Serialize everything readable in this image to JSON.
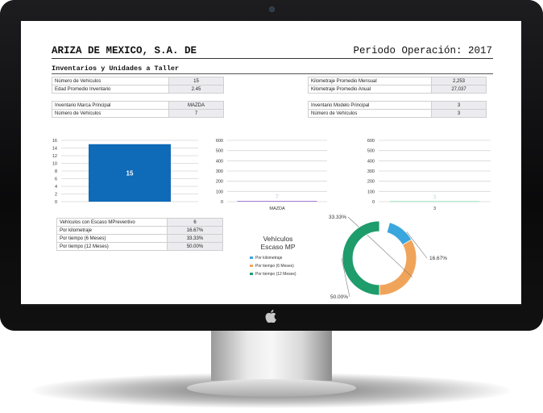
{
  "header": {
    "company": "ARIZA DE MEXICO, S.A. DE",
    "period": "Periodo Operación: 2017"
  },
  "section_title": "Inventarios y Unidades a Taller",
  "tables": {
    "vehicles_left": [
      {
        "label": "Número de Vehículos",
        "value": "15"
      },
      {
        "label": "Edad Promedio Inventario",
        "value": "2.45"
      }
    ],
    "km_right": [
      {
        "label": "Kilometraje Promedio Mensual",
        "value": "2,253"
      },
      {
        "label": "Kilometraje Promedio Anual",
        "value": "27,037"
      }
    ],
    "brand_left": [
      {
        "label": "Inventario Marca Principal",
        "value": "MAZDA"
      },
      {
        "label": "Número de Vehículos",
        "value": "7"
      }
    ],
    "model_right": [
      {
        "label": "Inventario Modelo Principal",
        "value": "3"
      },
      {
        "label": "Número de Vehículos",
        "value": "3"
      }
    ],
    "maintenance": [
      {
        "label": "Vehículos con Escaso MPreventivo",
        "value": "6"
      },
      {
        "label": "Por kilometraje",
        "value": "16.67%"
      },
      {
        "label": "Por tiempo (6 Meses)",
        "value": "33.33%"
      },
      {
        "label": "Por tiempo (12 Meses)",
        "value": "50.00%"
      }
    ]
  },
  "chart_data": [
    {
      "type": "bar",
      "categories": [
        ""
      ],
      "values": [
        15
      ],
      "data_labels": [
        "15"
      ],
      "ylim": [
        0,
        16
      ],
      "yticks": [
        "0",
        "2",
        "4",
        "6",
        "8",
        "10",
        "12",
        "14",
        "16"
      ],
      "color": "#0f6ab8",
      "label_color": "#ffffff",
      "grid": true
    },
    {
      "type": "bar",
      "categories": [
        "MAZDA"
      ],
      "values": [
        7
      ],
      "data_labels": [
        "7"
      ],
      "ylim": [
        0,
        600
      ],
      "yticks": [
        "0",
        "100",
        "200",
        "300",
        "400",
        "500",
        "600"
      ],
      "color": "#9b6fd4",
      "label_color": "#d8d8ea",
      "grid": true
    },
    {
      "type": "bar",
      "categories": [
        "3"
      ],
      "values": [
        3
      ],
      "data_labels": [
        "3"
      ],
      "ylim": [
        0,
        600
      ],
      "yticks": [
        "0",
        "100",
        "200",
        "300",
        "400",
        "500",
        "600"
      ],
      "color": "#52d18a",
      "label_color": "#d4ece0",
      "grid": true
    },
    {
      "type": "pie",
      "title": "Vehículos Escaso MP",
      "slices": [
        {
          "name": "Por kilometraje",
          "value": 16.67,
          "label": "16.67%",
          "color": "#3aa6dd"
        },
        {
          "name": "Por tiempo (6 Meses)",
          "value": 33.33,
          "label": "33.33%",
          "color": "#f0a45a"
        },
        {
          "name": "Por tiempo (12 Meses)",
          "value": 50.0,
          "label": "50.00%",
          "color": "#1e9c6c"
        }
      ],
      "donut": true,
      "legend": "left"
    }
  ]
}
